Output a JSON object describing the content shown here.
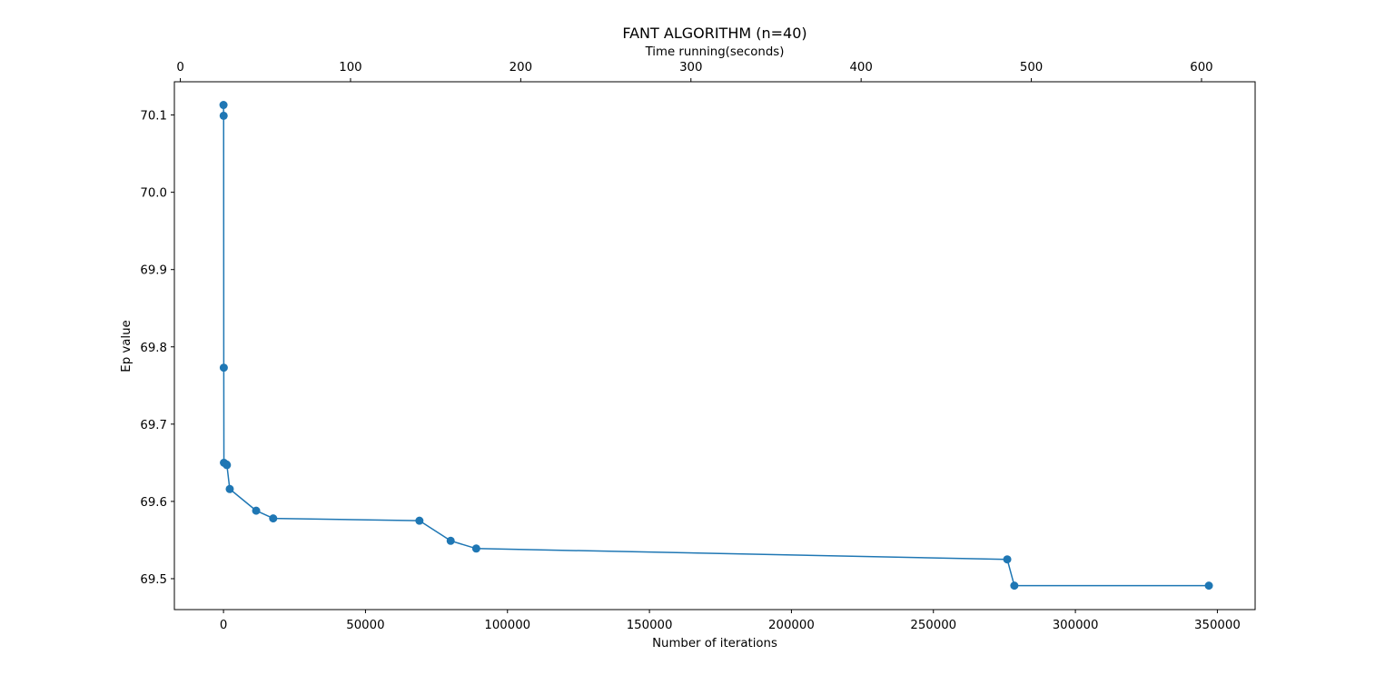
{
  "chart_data": {
    "type": "line",
    "title": "FANT ALGORITHM (n=40)",
    "xlabel": "Number of iterations",
    "ylabel": "Ep value",
    "x2label": "Time running(seconds)",
    "xlim": [
      -17300,
      363300
    ],
    "ylim": [
      69.46,
      70.143
    ],
    "x2lim": [
      -3.5,
      631.5
    ],
    "xticks": [
      0,
      50000,
      100000,
      150000,
      200000,
      250000,
      300000,
      350000
    ],
    "xtick_labels": [
      "0",
      "50000",
      "100000",
      "150000",
      "200000",
      "250000",
      "300000",
      "350000"
    ],
    "yticks": [
      69.5,
      69.6,
      69.7,
      69.8,
      69.9,
      70.0,
      70.1
    ],
    "ytick_labels": [
      "69.5",
      "69.6",
      "69.7",
      "69.8",
      "69.9",
      "70.0",
      "70.1"
    ],
    "x2ticks": [
      0,
      100,
      200,
      300,
      400,
      500,
      600
    ],
    "x2tick_labels": [
      "0",
      "100",
      "200",
      "300",
      "400",
      "500",
      "600"
    ],
    "grid": false,
    "color": "#1f77b4",
    "series": [
      {
        "marker": "circle",
        "x": [
          0,
          50,
          100,
          150,
          1000,
          1200,
          2200,
          11500,
          17500,
          69000,
          80000,
          89000,
          276000,
          278500,
          347000
        ],
        "y": [
          70.113,
          70.099,
          69.773,
          69.65,
          69.648,
          69.647,
          69.616,
          69.588,
          69.578,
          69.575,
          69.549,
          69.539,
          69.525,
          69.491,
          69.491
        ]
      }
    ]
  }
}
